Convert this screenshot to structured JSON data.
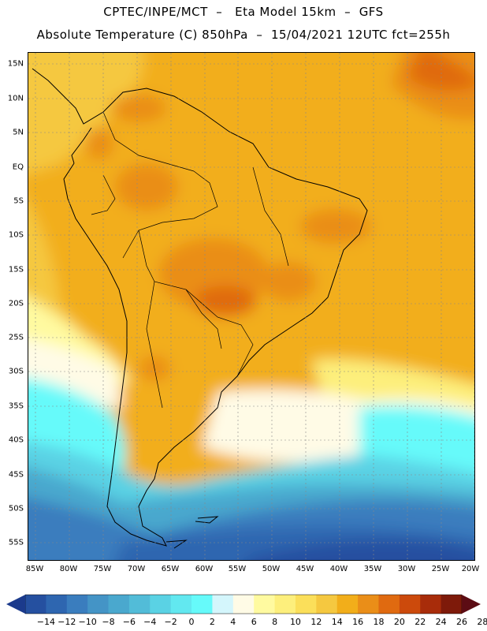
{
  "header": {
    "line1": "CPTEC/INPE/MCT  –   Eta Model 15km  –  GFS",
    "line2": "Absolute Temperature (C) 850hPa  –  15/04/2021 12UTC fct=255h"
  },
  "map": {
    "latitude_labels": [
      "15N",
      "10N",
      "5N",
      "EQ",
      "5S",
      "10S",
      "15S",
      "20S",
      "25S",
      "30S",
      "35S",
      "40S",
      "45S",
      "50S",
      "55S"
    ],
    "longitude_labels": [
      "85W",
      "80W",
      "75W",
      "70W",
      "65W",
      "60W",
      "55W",
      "50W",
      "45W",
      "40W",
      "35W",
      "30W",
      "25W",
      "20W"
    ]
  },
  "legend": {
    "labels": [
      "-14",
      "-12",
      "-10",
      "-8",
      "-6",
      "-4",
      "-2",
      "0",
      "2",
      "4",
      "6",
      "8",
      "10",
      "12",
      "14",
      "16",
      "18",
      "20",
      "22",
      "24",
      "26",
      "28"
    ],
    "colors": [
      "#1b3a8c",
      "#2550a0",
      "#2e66b0",
      "#3a7dbe",
      "#4494c6",
      "#4aa8ce",
      "#52bcd8",
      "#5ad2e4",
      "#62e8f0",
      "#66fafa",
      "#d4f6fc",
      "#fffbe6",
      "#fffaa0",
      "#fdef7c",
      "#fbdf5a",
      "#f5c840",
      "#f2ae1a",
      "#ea8e18",
      "#e06a10",
      "#cc4a0c",
      "#a82c0a",
      "#7e1a0a",
      "#5c0c14"
    ]
  }
}
